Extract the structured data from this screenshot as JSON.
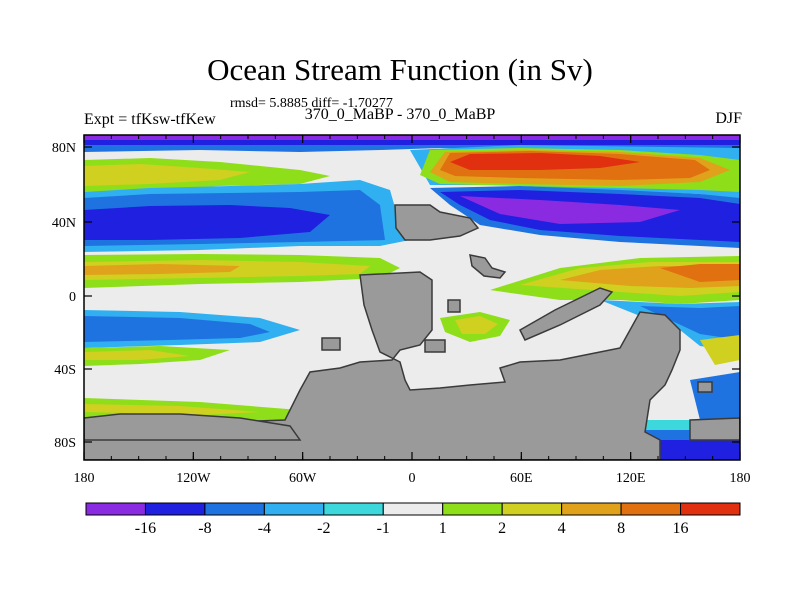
{
  "plot": {
    "title": "Ocean Stream Function (in Sv)",
    "stats": "rmsd= 5.8885 diff= -1.70277",
    "left_label": "Expt = tfKsw-tfKew",
    "center_label": "370_0_MaBP - 370_0_MaBP",
    "right_label": "DJF"
  },
  "map": {
    "x_ticks": [
      "180",
      "120W",
      "60W",
      "0",
      "60E",
      "120E",
      "180"
    ],
    "y_ticks": [
      "80N",
      "40N",
      "0",
      "40S",
      "80S"
    ],
    "land_color": "#9a9a9a"
  },
  "colorbar": {
    "colors": [
      "#8a2be2",
      "#2020e0",
      "#1f73e0",
      "#30b0f0",
      "#3dd8dc",
      "#ececec",
      "#8ede1a",
      "#cfd020",
      "#e0a21a",
      "#e07010",
      "#e03010"
    ],
    "labels": [
      "-16",
      "-8",
      "-4",
      "-2",
      "-1",
      "1",
      "2",
      "4",
      "8",
      "16"
    ]
  }
}
